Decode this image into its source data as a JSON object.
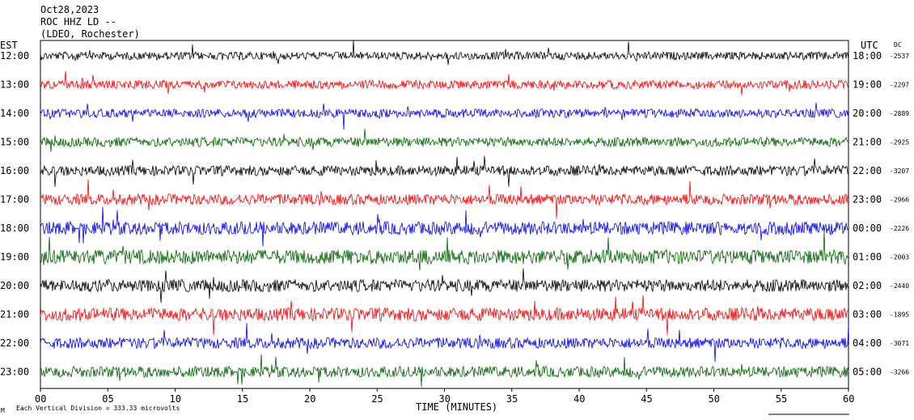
{
  "header": {
    "date": "Oct28,2023",
    "station": "ROC HHZ LD --",
    "network": "(LDEO, Rochester)"
  },
  "axes": {
    "left_tz": "EST",
    "right_tz": "UTC",
    "dc_label": "DC",
    "x_title": "TIME (MINUTES)",
    "x_ticks": [
      "00",
      "05",
      "10",
      "15",
      "20",
      "25",
      "30",
      "35",
      "40",
      "45",
      "50",
      "55",
      "60"
    ]
  },
  "footer": {
    "scale_text": "Each Vertical Division = 333.33 microvolts",
    "corner_mark": "M"
  },
  "colors": {
    "trace_cycle": [
      "#000000",
      "#ff0000",
      "#0000ff",
      "#006400"
    ]
  },
  "chart_data": {
    "type": "line",
    "title": "Oct28,2023",
    "xlabel": "TIME (MINUTES)",
    "ylabel": "",
    "xlim": [
      0,
      60
    ],
    "grid": false,
    "note_text": "helicorder: one trace per hour, colours cycle black/red/blue/green",
    "traces": [
      {
        "est": "12:00",
        "utc": "18:00",
        "dc": "-2537",
        "color": "#000000",
        "amp": 0.55
      },
      {
        "est": "13:00",
        "utc": "19:00",
        "dc": "-2297",
        "color": "#ff0000",
        "amp": 0.6
      },
      {
        "est": "14:00",
        "utc": "20:00",
        "dc": "-2889",
        "color": "#0000ff",
        "amp": 0.6
      },
      {
        "est": "15:00",
        "utc": "21:00",
        "dc": "-2925",
        "color": "#006400",
        "amp": 0.65
      },
      {
        "est": "16:00",
        "utc": "22:00",
        "dc": "-3207",
        "color": "#000000",
        "amp": 0.7
      },
      {
        "est": "17:00",
        "utc": "23:00",
        "dc": "-2966",
        "color": "#ff0000",
        "amp": 0.75
      },
      {
        "est": "18:00",
        "utc": "00:00",
        "dc": "-2226",
        "color": "#0000ff",
        "amp": 0.9
      },
      {
        "est": "19:00",
        "utc": "01:00",
        "dc": "-2003",
        "color": "#006400",
        "amp": 1.0
      },
      {
        "est": "20:00",
        "utc": "02:00",
        "dc": "-2440",
        "color": "#000000",
        "amp": 0.85
      },
      {
        "est": "21:00",
        "utc": "03:00",
        "dc": "-1895",
        "color": "#ff0000",
        "amp": 0.9
      },
      {
        "est": "22:00",
        "utc": "04:00",
        "dc": "-3071",
        "color": "#0000ff",
        "amp": 0.75
      },
      {
        "est": "23:00",
        "utc": "05:00",
        "dc": "-3266",
        "color": "#006400",
        "amp": 0.75
      }
    ]
  }
}
